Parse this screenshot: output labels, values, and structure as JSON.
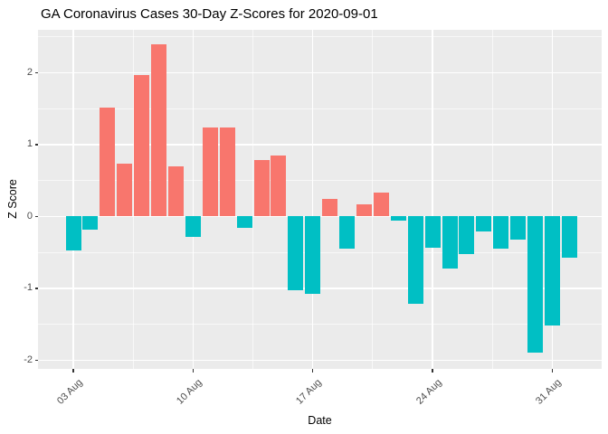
{
  "title": "GA Coronavirus Cases 30-Day Z-Scores for 2020-09-01",
  "colors": {
    "positive_bar": "#F8766D",
    "negative_bar": "#00BFC4",
    "panel_background": "#EBEBEB",
    "gridline": "#FFFFFF",
    "tick_text": "#4D4D4D",
    "axis_title_text": "#000000"
  },
  "chart_data": {
    "type": "bar",
    "title": "GA Coronavirus Cases 30-Day Z-Scores for 2020-09-01",
    "xlabel": "Date",
    "ylabel": "Z Score",
    "categories": [
      "2020-08-03",
      "2020-08-04",
      "2020-08-05",
      "2020-08-06",
      "2020-08-07",
      "2020-08-08",
      "2020-08-09",
      "2020-08-10",
      "2020-08-11",
      "2020-08-12",
      "2020-08-13",
      "2020-08-14",
      "2020-08-15",
      "2020-08-16",
      "2020-08-17",
      "2020-08-18",
      "2020-08-19",
      "2020-08-20",
      "2020-08-21",
      "2020-08-22",
      "2020-08-23",
      "2020-08-24",
      "2020-08-25",
      "2020-08-26",
      "2020-08-27",
      "2020-08-28",
      "2020-08-29",
      "2020-08-30",
      "2020-08-31",
      "2020-09-01"
    ],
    "values": [
      -0.48,
      -0.19,
      1.51,
      0.73,
      1.97,
      2.39,
      0.7,
      -0.29,
      1.24,
      1.24,
      -0.16,
      0.78,
      0.85,
      -1.03,
      -1.08,
      0.24,
      -0.45,
      0.17,
      0.33,
      -0.06,
      -1.22,
      -0.44,
      -0.72,
      -0.53,
      -0.21,
      -0.45,
      -0.32,
      -1.9,
      -1.52,
      -0.57
    ],
    "series_color_rule": "positive=#F8766D salmon, negative=#00BFC4 teal",
    "x_tick_labels": [
      "03 Aug",
      "10 Aug",
      "17 Aug",
      "24 Aug",
      "31 Aug"
    ],
    "x_tick_indices": [
      0,
      7,
      14,
      21,
      28
    ],
    "y_tick_labels": [
      "-2",
      "-1",
      "0",
      "1",
      "2"
    ],
    "y_ticks": [
      -2,
      -1,
      0,
      1,
      2
    ],
    "y_minor_ticks": [
      -1.5,
      -0.5,
      0.5,
      1.5,
      2.5
    ],
    "x_minor_tick_indices": [
      3.5,
      10.5,
      17.5,
      24.5
    ],
    "ylim": [
      -2.12,
      2.6
    ],
    "grid": "on",
    "legend": "none"
  }
}
